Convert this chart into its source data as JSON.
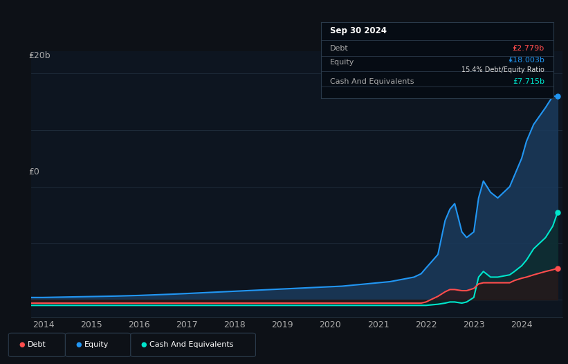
{
  "background_color": "#0d1117",
  "plot_bg_color": "#0d1520",
  "grid_color": "#263545",
  "debt_color": "#ff4d4d",
  "equity_color": "#2196f3",
  "cash_color": "#00e5cc",
  "equity_fill_color": "#1a3a5c",
  "debt_fill_color": "#2a1515",
  "cash_fill_color": "#0a2a25",
  "ylabel_20b": "₤20b",
  "ylabel_0": "₤0",
  "x_ticks": [
    2014,
    2015,
    2016,
    2017,
    2018,
    2019,
    2020,
    2021,
    2022,
    2023,
    2024
  ],
  "years": [
    2013.75,
    2014.0,
    2014.25,
    2014.5,
    2014.75,
    2015.0,
    2015.25,
    2015.5,
    2015.75,
    2016.0,
    2016.25,
    2016.5,
    2016.75,
    2017.0,
    2017.25,
    2017.5,
    2017.75,
    2018.0,
    2018.25,
    2018.5,
    2018.75,
    2019.0,
    2019.25,
    2019.5,
    2019.75,
    2020.0,
    2020.25,
    2020.5,
    2020.75,
    2021.0,
    2021.25,
    2021.5,
    2021.75,
    2021.9,
    2022.0,
    2022.25,
    2022.4,
    2022.5,
    2022.6,
    2022.75,
    2022.85,
    2023.0,
    2023.1,
    2023.2,
    2023.35,
    2023.5,
    2023.75,
    2023.85,
    2024.0,
    2024.1,
    2024.25,
    2024.5,
    2024.65,
    2024.75
  ],
  "debt": [
    -0.3,
    -0.3,
    -0.3,
    -0.3,
    -0.3,
    -0.3,
    -0.3,
    -0.3,
    -0.3,
    -0.3,
    -0.3,
    -0.3,
    -0.3,
    -0.3,
    -0.3,
    -0.3,
    -0.3,
    -0.3,
    -0.3,
    -0.3,
    -0.3,
    -0.3,
    -0.3,
    -0.3,
    -0.3,
    -0.3,
    -0.3,
    -0.3,
    -0.3,
    -0.3,
    -0.3,
    -0.3,
    -0.3,
    -0.3,
    -0.2,
    0.3,
    0.7,
    0.9,
    0.9,
    0.8,
    0.8,
    1.0,
    1.4,
    1.5,
    1.5,
    1.5,
    1.5,
    1.7,
    1.9,
    2.0,
    2.2,
    2.5,
    2.65,
    2.779
  ],
  "equity": [
    0.2,
    0.2,
    0.22,
    0.24,
    0.26,
    0.28,
    0.3,
    0.32,
    0.35,
    0.38,
    0.42,
    0.46,
    0.5,
    0.55,
    0.6,
    0.65,
    0.7,
    0.75,
    0.8,
    0.85,
    0.9,
    0.95,
    1.0,
    1.05,
    1.1,
    1.15,
    1.2,
    1.3,
    1.4,
    1.5,
    1.6,
    1.8,
    2.0,
    2.3,
    2.8,
    4.0,
    7.0,
    8.0,
    8.5,
    6.0,
    5.5,
    6.0,
    9.0,
    10.5,
    9.5,
    9.0,
    10.0,
    11.0,
    12.5,
    14.0,
    15.5,
    17.0,
    18.0,
    18.003
  ],
  "cash": [
    -0.5,
    -0.5,
    -0.5,
    -0.5,
    -0.5,
    -0.5,
    -0.5,
    -0.5,
    -0.5,
    -0.5,
    -0.5,
    -0.5,
    -0.5,
    -0.5,
    -0.5,
    -0.5,
    -0.5,
    -0.5,
    -0.5,
    -0.5,
    -0.5,
    -0.5,
    -0.5,
    -0.5,
    -0.5,
    -0.5,
    -0.5,
    -0.5,
    -0.5,
    -0.5,
    -0.5,
    -0.5,
    -0.5,
    -0.5,
    -0.5,
    -0.4,
    -0.3,
    -0.2,
    -0.2,
    -0.3,
    -0.2,
    0.2,
    2.0,
    2.5,
    2.0,
    2.0,
    2.2,
    2.5,
    3.0,
    3.5,
    4.5,
    5.5,
    6.5,
    7.715
  ],
  "ylim": [
    -1.5,
    22
  ],
  "xlim": [
    2013.75,
    2024.85
  ],
  "tooltip": {
    "date": "Sep 30 2024",
    "debt_label": "Debt",
    "debt_value": "₤2.779b",
    "equity_label": "Equity",
    "equity_value": "₤18.003b",
    "ratio_pct": "15.4%",
    "ratio_label": "Debt/Equity Ratio",
    "cash_label": "Cash And Equivalents",
    "cash_value": "₤7.715b"
  }
}
